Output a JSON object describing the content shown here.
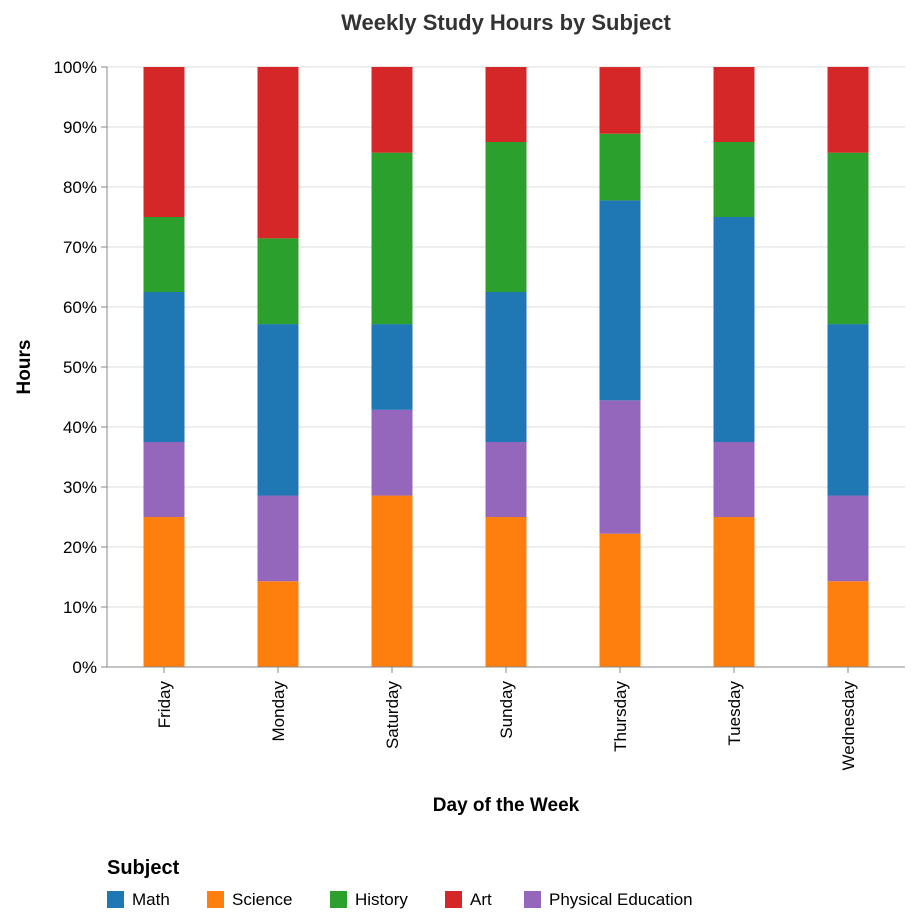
{
  "chart_data": {
    "type": "bar",
    "stacked": true,
    "normalized": true,
    "title": "Weekly Study Hours by Subject",
    "xlabel": "Day of the Week",
    "ylabel": "Hours",
    "ylim": [
      0,
      1
    ],
    "yticks": [
      "0%",
      "10%",
      "20%",
      "30%",
      "40%",
      "50%",
      "60%",
      "70%",
      "80%",
      "90%",
      "100%"
    ],
    "grid": true,
    "categories": [
      "Friday",
      "Monday",
      "Saturday",
      "Sunday",
      "Thursday",
      "Tuesday",
      "Wednesday"
    ],
    "stack_order": [
      "Science",
      "Physical Education",
      "Math",
      "History",
      "Art"
    ],
    "series": [
      {
        "name": "Math",
        "color": "#1f77b4",
        "values": [
          0.25,
          0.2857,
          0.1429,
          0.25,
          0.3333,
          0.375,
          0.2857
        ]
      },
      {
        "name": "Science",
        "color": "#ff7f0e",
        "values": [
          0.25,
          0.1429,
          0.2857,
          0.25,
          0.2222,
          0.25,
          0.1429
        ]
      },
      {
        "name": "History",
        "color": "#2ca02c",
        "values": [
          0.125,
          0.1429,
          0.2857,
          0.25,
          0.1111,
          0.125,
          0.2857
        ]
      },
      {
        "name": "Art",
        "color": "#d62728",
        "values": [
          0.25,
          0.2857,
          0.1429,
          0.125,
          0.1111,
          0.125,
          0.1429
        ]
      },
      {
        "name": "Physical Education",
        "color": "#9467bd",
        "values": [
          0.125,
          0.1429,
          0.1429,
          0.125,
          0.2222,
          0.125,
          0.1429
        ]
      }
    ],
    "legend": {
      "title": "Subject",
      "position": "bottom",
      "items": [
        "Math",
        "Science",
        "History",
        "Art",
        "Physical Education"
      ]
    }
  }
}
